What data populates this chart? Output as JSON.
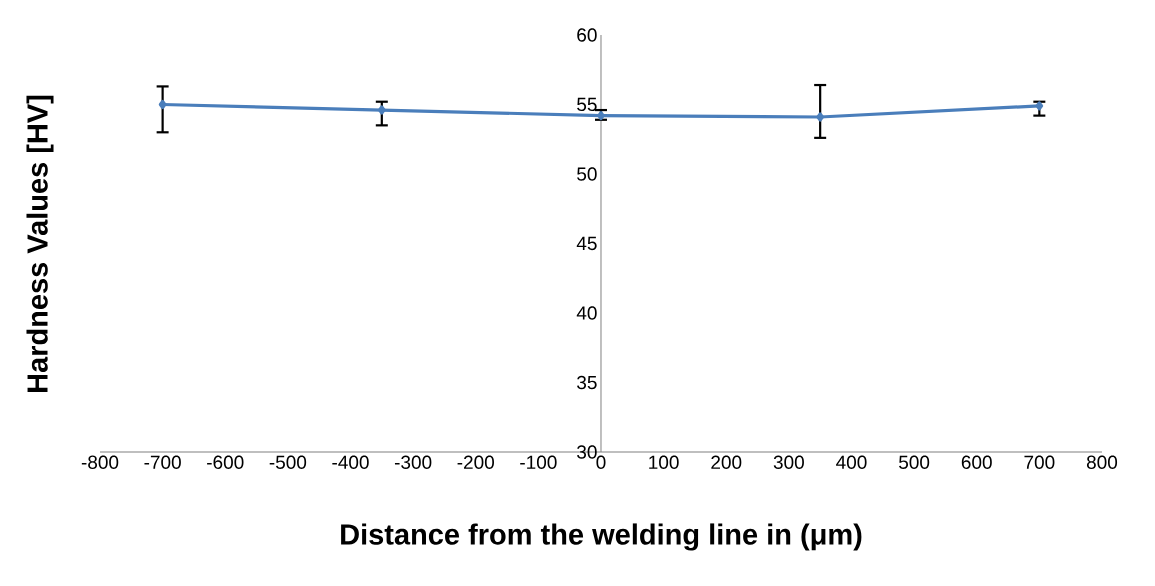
{
  "chart_data": {
    "type": "line",
    "xlabel": "Distance from the welding line in (μm)",
    "ylabel": "Hardness Values [HV]",
    "x": [
      -700,
      -350,
      0,
      350,
      700
    ],
    "series": [
      {
        "color": "#4a7ebb",
        "values": [
          55.0,
          54.6,
          54.2,
          54.1,
          54.9
        ],
        "errors": [
          [
            53.0,
            56.3
          ],
          [
            53.5,
            55.2
          ],
          [
            53.9,
            54.6
          ],
          [
            52.6,
            56.4
          ],
          [
            54.2,
            55.2
          ]
        ]
      }
    ],
    "xlim": [
      -800,
      800
    ],
    "xticks": [
      -800,
      -700,
      -600,
      -500,
      -400,
      -300,
      -200,
      -100,
      0,
      100,
      200,
      300,
      400,
      500,
      600,
      700,
      800
    ],
    "ylim": [
      30,
      60
    ],
    "yticks": [
      30,
      35,
      40,
      45,
      50,
      55,
      60
    ],
    "marker": "diamond",
    "line_style": "solid",
    "grid": false,
    "legend": false
  }
}
